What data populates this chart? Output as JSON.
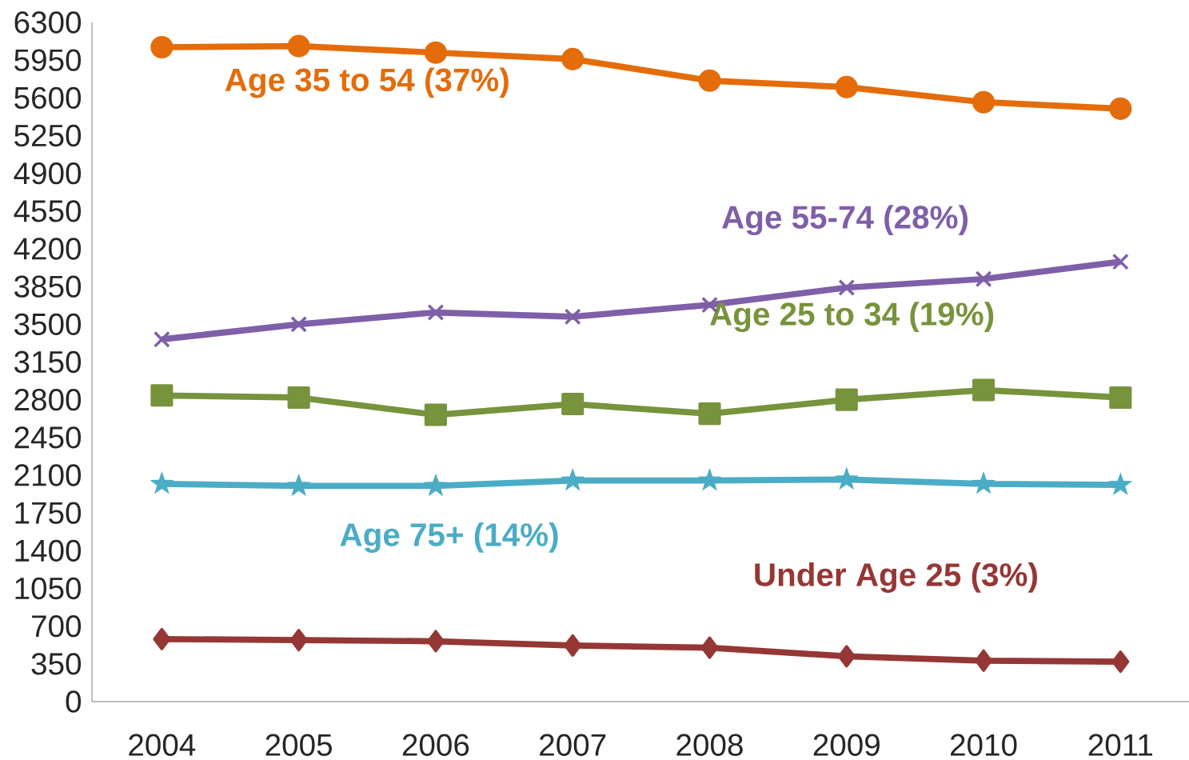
{
  "chart_data": {
    "type": "line",
    "categories": [
      "2004",
      "2005",
      "2006",
      "2007",
      "2008",
      "2009",
      "2010",
      "2011"
    ],
    "series": [
      {
        "name": "Age 35 to 54 (37%)",
        "color": "#e46c0a",
        "marker": "circle",
        "values": [
          6070,
          6080,
          6020,
          5960,
          5760,
          5700,
          5560,
          5500
        ]
      },
      {
        "name": "Age 55-74 (28%)",
        "color": "#7f5fa8",
        "marker": "cross",
        "values": [
          3360,
          3500,
          3610,
          3570,
          3680,
          3840,
          3920,
          4080
        ]
      },
      {
        "name": "Age 25 to 34 (19%)",
        "color": "#77933c",
        "marker": "square",
        "values": [
          2840,
          2820,
          2660,
          2760,
          2670,
          2800,
          2890,
          2820
        ]
      },
      {
        "name": "Age 75+ (14%)",
        "color": "#4bacc6",
        "marker": "star",
        "values": [
          2020,
          2000,
          2000,
          2050,
          2050,
          2060,
          2020,
          2010
        ]
      },
      {
        "name": "Under Age 25 (3%)",
        "color": "#953735",
        "marker": "diamond",
        "values": [
          580,
          570,
          560,
          520,
          500,
          420,
          380,
          370
        ]
      }
    ],
    "ylim": [
      0,
      6300
    ],
    "yticks": [
      0,
      350,
      700,
      1050,
      1400,
      1750,
      2100,
      2450,
      2800,
      3150,
      3500,
      3850,
      4200,
      4550,
      4900,
      5250,
      5600,
      5950,
      6300
    ],
    "grid": false
  }
}
